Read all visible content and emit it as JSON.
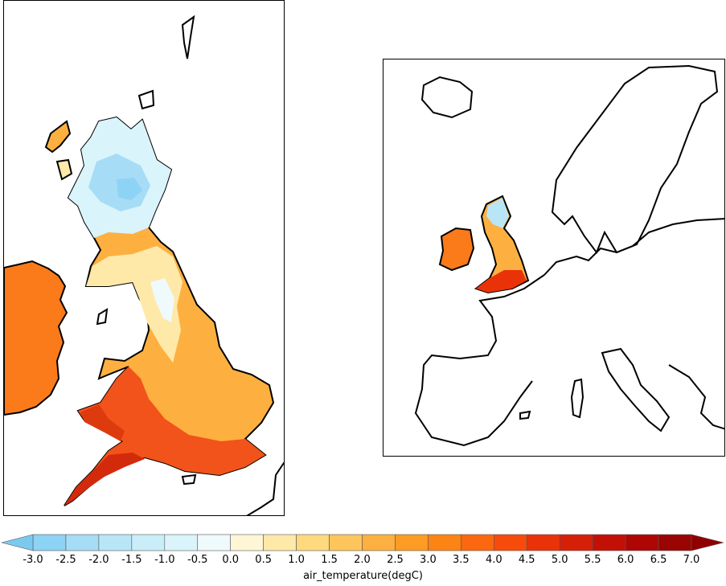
{
  "legend": {
    "label": "air_temperature(degC)",
    "ticks": [
      "-3.0",
      "-2.5",
      "-2.0",
      "-1.5",
      "-1.0",
      "-0.5",
      "0.0",
      "0.5",
      "1.0",
      "1.5",
      "2.0",
      "2.5",
      "3.0",
      "3.5",
      "4.0",
      "4.5",
      "5.0",
      "5.5",
      "6.0",
      "6.5",
      "7.0"
    ],
    "colors": [
      "#8dd3f5",
      "#a6dcf6",
      "#b9e6f7",
      "#c9eef9",
      "#d9f4fa",
      "#eefafc",
      "#fff6d5",
      "#fee9a8",
      "#fed97e",
      "#fdc55c",
      "#fdb040",
      "#fd9b24",
      "#fc8414",
      "#fb680f",
      "#f74b0c",
      "#ea3209",
      "#d61f07",
      "#c21006",
      "#ae0605",
      "#9a0403"
    ],
    "under_color": "#7cc9f0",
    "over_color": "#900000"
  }
}
